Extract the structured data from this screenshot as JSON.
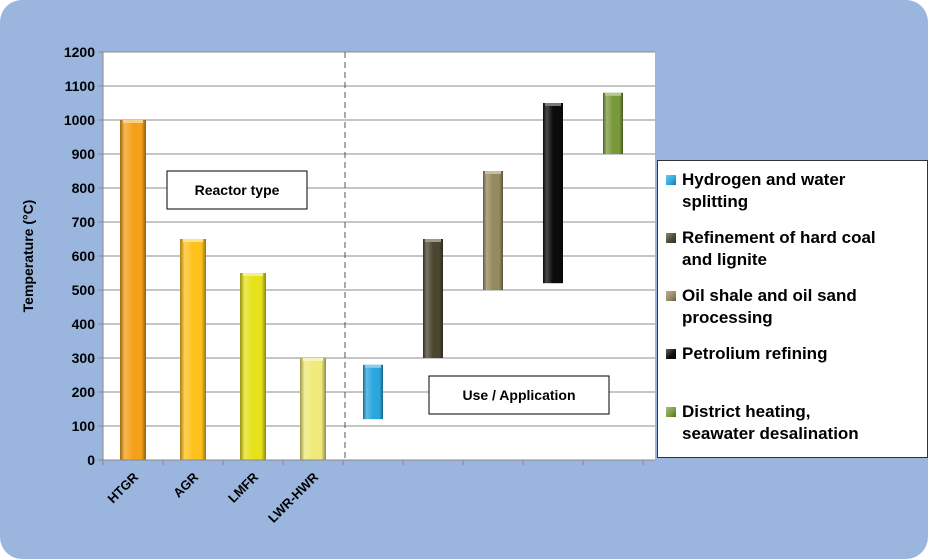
{
  "chart_data": {
    "type": "bar",
    "ylabel": "Temperature (°C)",
    "ylim": [
      0,
      1200
    ],
    "yticks": [
      0,
      100,
      200,
      300,
      400,
      500,
      600,
      700,
      800,
      900,
      1000,
      1100,
      1200
    ],
    "grid": true,
    "reactor_section_label": "Reactor type",
    "application_section_label": "Use / Application",
    "reactors": [
      {
        "name": "HTGR",
        "value": 1000,
        "color": "#f5a01a"
      },
      {
        "name": "AGR",
        "value": 650,
        "color": "#ffc21c"
      },
      {
        "name": "LMFR",
        "value": 550,
        "color": "#e6e21a"
      },
      {
        "name": "LWR-HWR",
        "value": 300,
        "color": "#efea7a"
      }
    ],
    "applications": [
      {
        "name": "Hydrogen and water splitting",
        "min": 120,
        "max": 280,
        "color": "#2aa6de"
      },
      {
        "name": "Refinement of hard coal and lignite",
        "min": 300,
        "max": 650,
        "color": "#4c4630"
      },
      {
        "name": "Oil shale and oil sand processing",
        "min": 500,
        "max": 850,
        "color": "#948a5e"
      },
      {
        "name": "Petrolium refining",
        "min": 520,
        "max": 1050,
        "color": "#0c0c0c"
      },
      {
        "name": "District heating, seawater desalination",
        "min": 900,
        "max": 1080,
        "color": "#789a3a"
      }
    ],
    "legend_position": "right"
  },
  "legend": {
    "items": [
      {
        "line1": "Hydrogen and water",
        "line2": "splitting",
        "color": "#2aa6de"
      },
      {
        "line1": "Refinement of hard coal",
        "line2": "and lignite",
        "color": "#4c4630"
      },
      {
        "line1": "Oil shale and oil sand",
        "line2": "processing",
        "color": "#948a5e"
      },
      {
        "line1": "Petrolium refining",
        "line2": "",
        "color": "#0c0c0c"
      },
      {
        "line1": "District heating,",
        "line2": "seawater desalination",
        "color": "#789a3a"
      }
    ]
  }
}
